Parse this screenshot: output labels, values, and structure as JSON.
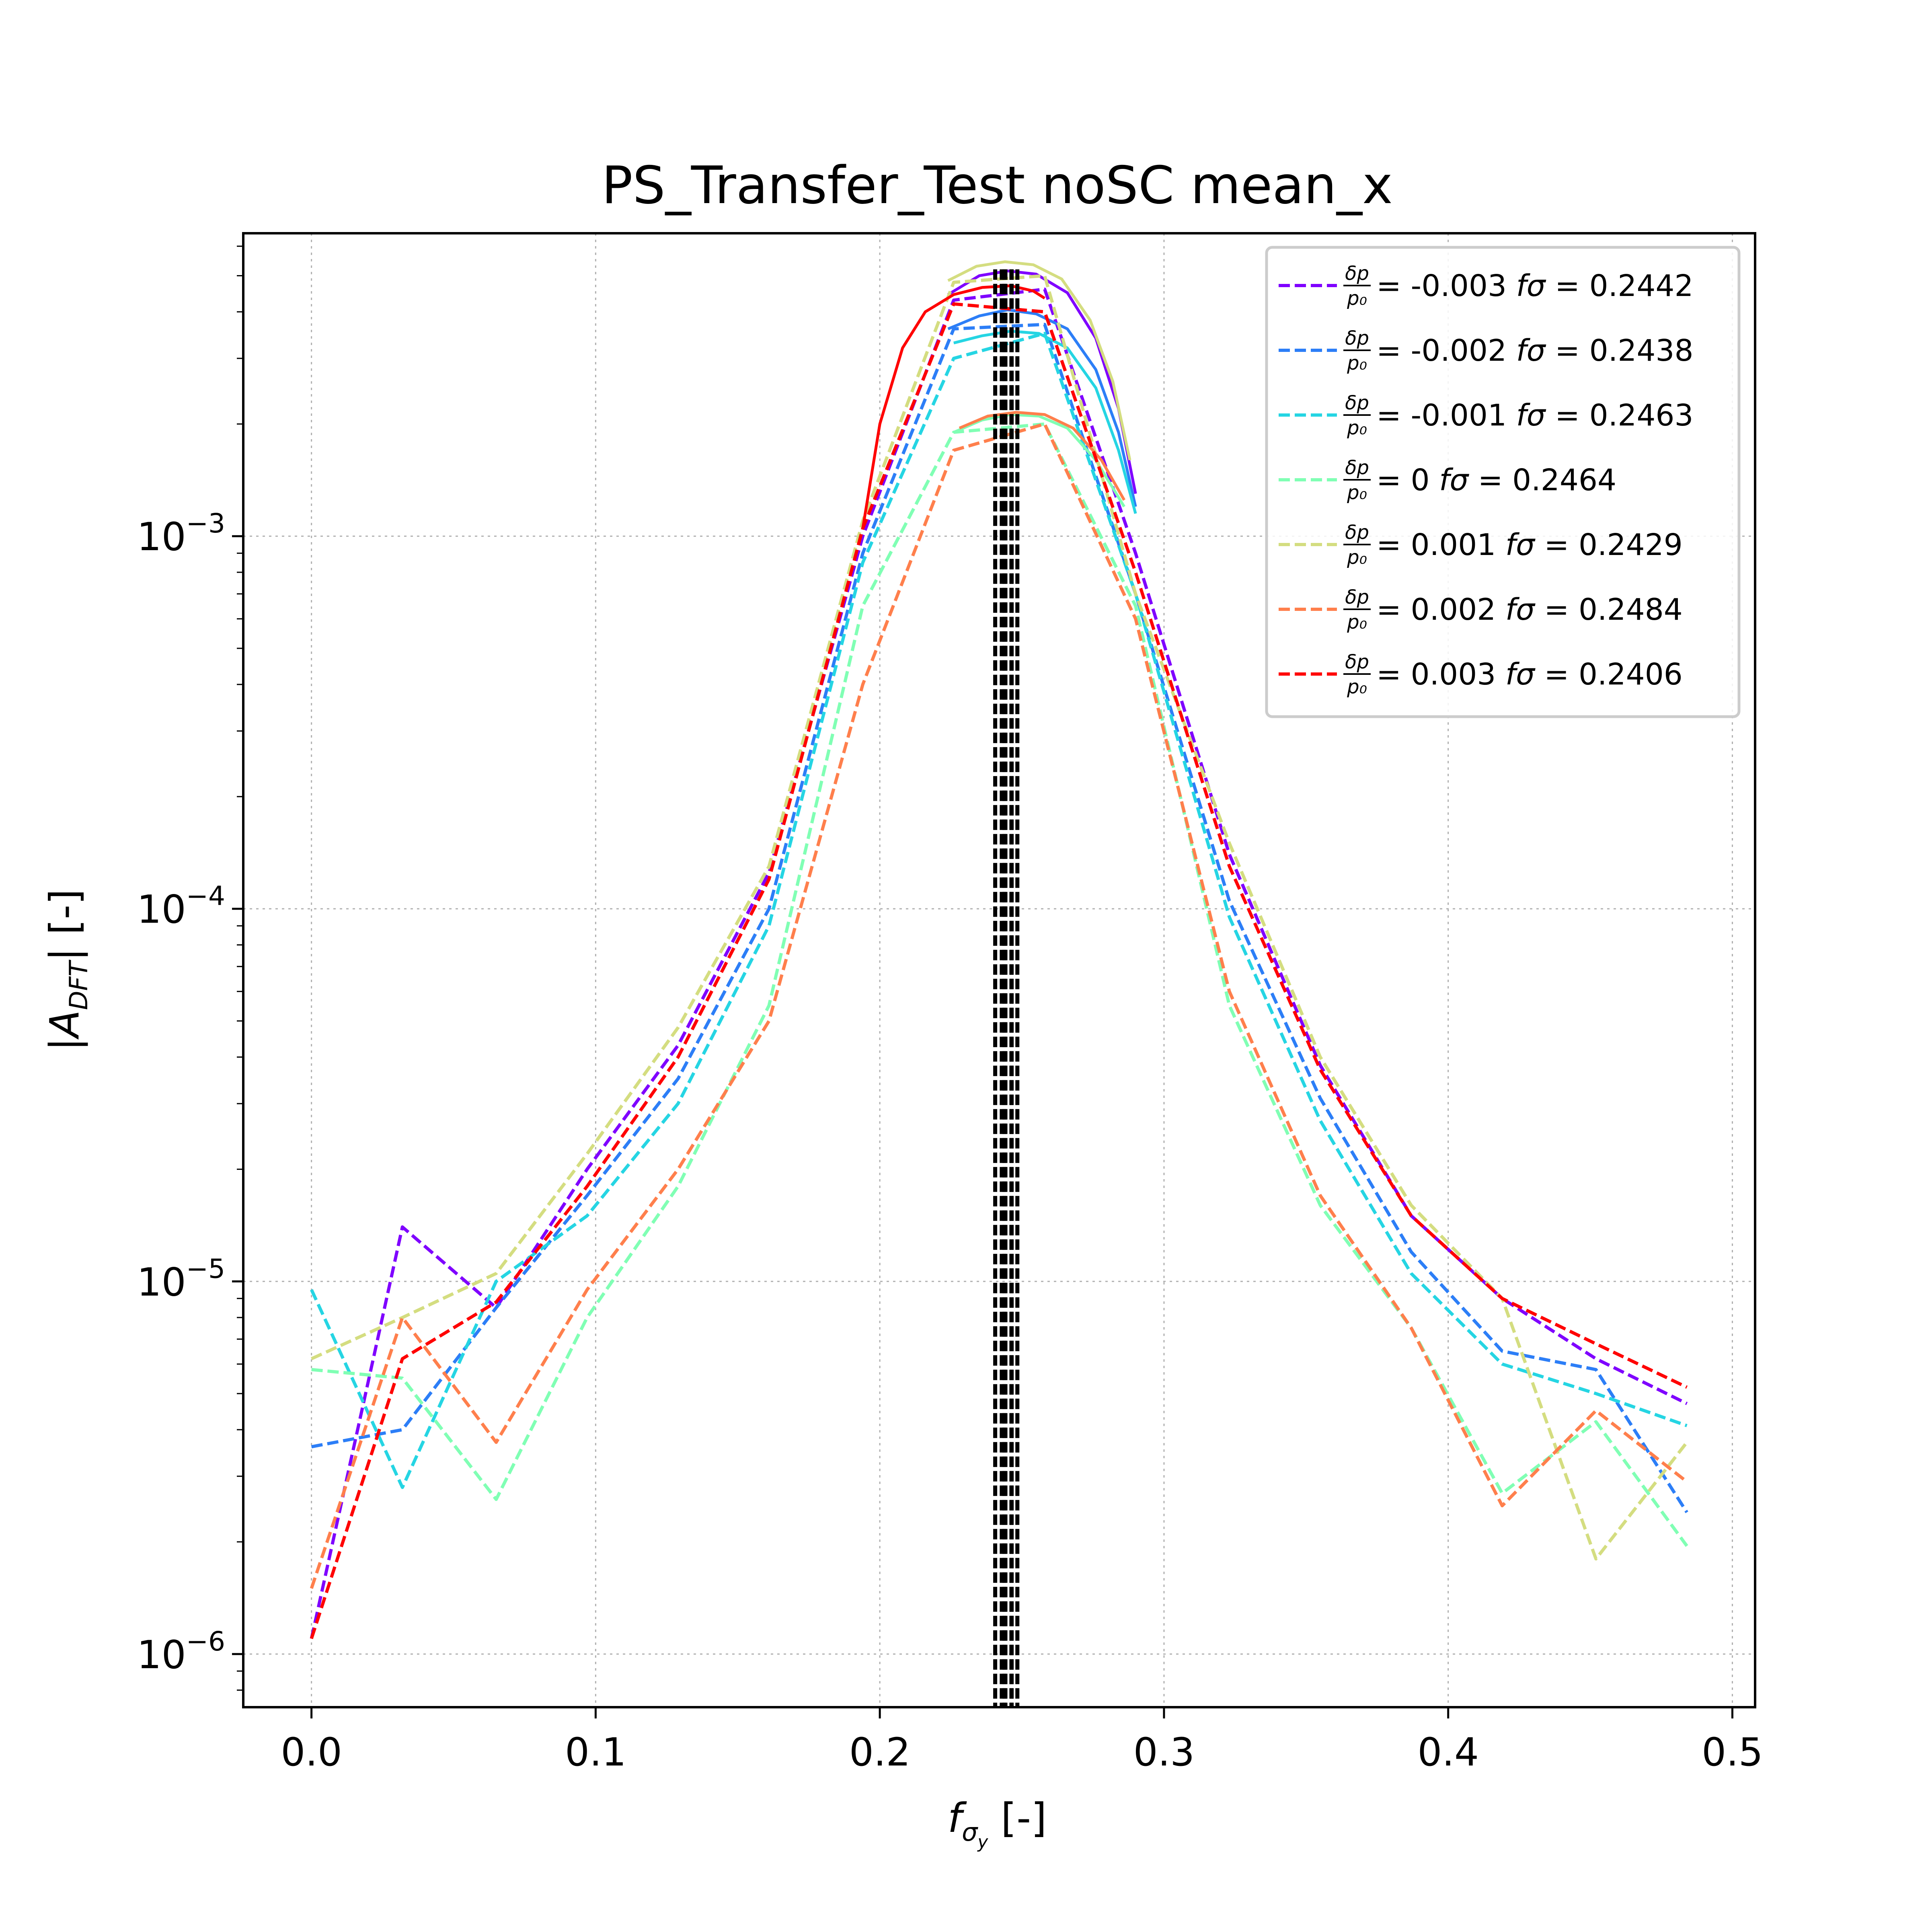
{
  "chart_data": {
    "type": "line",
    "title": "PS_Transfer_Test noSC mean_x",
    "xlabel": "f_σy [-]",
    "ylabel": "|A_DFT| [-]",
    "xlim": [
      -0.024,
      0.508
    ],
    "ylim": [
      7.2e-07,
      0.0065
    ],
    "yscale": "log",
    "grid": true,
    "legend_position": "upper-right",
    "x_ticks": [
      {
        "value": 0.0,
        "label": "0.0"
      },
      {
        "value": 0.1,
        "label": "0.1"
      },
      {
        "value": 0.2,
        "label": "0.2"
      },
      {
        "value": 0.3,
        "label": "0.3"
      },
      {
        "value": 0.4,
        "label": "0.4"
      },
      {
        "value": 0.5,
        "label": "0.5"
      }
    ],
    "y_ticks": [
      {
        "value": 0.001,
        "label": "10",
        "exp": "−3"
      },
      {
        "value": 0.0001,
        "label": "10",
        "exp": "−4"
      },
      {
        "value": 1e-05,
        "label": "10",
        "exp": "−5"
      },
      {
        "value": 1e-06,
        "label": "10",
        "exp": "−6"
      }
    ],
    "x": [
      0.0,
      0.032,
      0.065,
      0.097,
      0.129,
      0.161,
      0.194,
      0.226,
      0.258,
      0.29,
      0.323,
      0.355,
      0.387,
      0.419,
      0.452,
      0.484
    ],
    "series": [
      {
        "name": "δp/p0 = -0.003 fσ = 0.2442",
        "dp": "-0.003",
        "fsigma": "0.2442",
        "color": "#7f00ff",
        "values": [
          1.1e-06,
          1.4e-05,
          8.5e-06,
          2e-05,
          4.3e-05,
          0.000125,
          0.001,
          0.0043,
          0.0046,
          0.0009,
          0.00014,
          3.8e-05,
          1.5e-05,
          9e-06,
          6.2e-06,
          4.7e-06
        ],
        "peak_curve": [
          [
            0.224,
            0.00445
          ],
          [
            0.235,
            0.005
          ],
          [
            0.245,
            0.00515
          ],
          [
            0.255,
            0.00505
          ],
          [
            0.266,
            0.0045
          ],
          [
            0.276,
            0.0034
          ],
          [
            0.284,
            0.0022
          ],
          [
            0.29,
            0.0013
          ]
        ],
        "fsigma_value": 0.2442
      },
      {
        "name": "δp/p0 = -0.002 fσ = 0.2438",
        "dp": "-0.002",
        "fsigma": "0.2438",
        "color": "#2c7ef7",
        "values": [
          3.6e-06,
          4e-06,
          8.5e-06,
          1.7e-05,
          3.5e-05,
          0.0001,
          0.0009,
          0.0036,
          0.0037,
          0.0007,
          0.000105,
          3.1e-05,
          1.2e-05,
          6.5e-06,
          5.8e-06,
          2.4e-06
        ],
        "peak_curve": [
          [
            0.224,
            0.0036
          ],
          [
            0.235,
            0.0039
          ],
          [
            0.245,
            0.00405
          ],
          [
            0.255,
            0.00395
          ],
          [
            0.266,
            0.0036
          ],
          [
            0.276,
            0.0028
          ],
          [
            0.284,
            0.0019
          ],
          [
            0.29,
            0.0012
          ]
        ],
        "fsigma_value": 0.2438
      },
      {
        "name": "δp/p0 = -0.001 fσ = 0.2463",
        "dp": "-0.001",
        "fsigma": "0.2463",
        "color": "#25d5e3",
        "values": [
          9.5e-06,
          2.8e-06,
          1e-05,
          1.5e-05,
          3e-05,
          9e-05,
          0.00085,
          0.003,
          0.0035,
          0.0007,
          9.5e-05,
          2.7e-05,
          1.05e-05,
          6e-06,
          5e-06,
          4.1e-06
        ],
        "peak_curve": [
          [
            0.226,
            0.0033
          ],
          [
            0.236,
            0.00345
          ],
          [
            0.246,
            0.00355
          ],
          [
            0.256,
            0.0035
          ],
          [
            0.266,
            0.0032
          ],
          [
            0.276,
            0.0025
          ],
          [
            0.284,
            0.0017
          ],
          [
            0.29,
            0.00115
          ]
        ],
        "fsigma_value": 0.2463
      },
      {
        "name": "δp/p0 = 0 fσ = 0.2464",
        "dp": "0",
        "fsigma": "0.2464",
        "color": "#80ffb4",
        "values": [
          5.8e-06,
          5.5e-06,
          2.6e-06,
          8e-06,
          1.8e-05,
          5.5e-05,
          0.00065,
          0.0019,
          0.002,
          0.00065,
          5.5e-05,
          1.6e-05,
          7.5e-06,
          2.7e-06,
          4.2e-06,
          1.95e-06
        ],
        "peak_curve": [
          [
            0.226,
            0.0019
          ],
          [
            0.236,
            0.00205
          ],
          [
            0.246,
            0.00212
          ],
          [
            0.256,
            0.0021
          ],
          [
            0.266,
            0.00195
          ],
          [
            0.276,
            0.0016
          ],
          [
            0.286,
            0.0012
          ]
        ],
        "fsigma_value": 0.2464
      },
      {
        "name": "δp/p0 = 0.001 fσ = 0.2429",
        "dp": "0.001",
        "fsigma": "0.2429",
        "color": "#d4dd80",
        "values": [
          6.2e-06,
          8e-06,
          1.05e-05,
          2.2e-05,
          4.8e-05,
          0.00013,
          0.0011,
          0.0048,
          0.005,
          0.0007,
          0.00015,
          4e-05,
          1.6e-05,
          9e-06,
          1.8e-06,
          3.7e-06
        ],
        "peak_curve": [
          [
            0.224,
            0.00485
          ],
          [
            0.234,
            0.0053
          ],
          [
            0.244,
            0.00545
          ],
          [
            0.254,
            0.00535
          ],
          [
            0.264,
            0.0049
          ],
          [
            0.274,
            0.0038
          ],
          [
            0.282,
            0.0026
          ],
          [
            0.288,
            0.0016
          ]
        ],
        "fsigma_value": 0.2429
      },
      {
        "name": "δp/p0 = 0.002 fσ = 0.2484",
        "dp": "0.002",
        "fsigma": "0.2484",
        "color": "#ff7f4c",
        "values": [
          1.5e-06,
          8e-06,
          3.7e-06,
          9.5e-06,
          2e-05,
          5e-05,
          0.0004,
          0.0017,
          0.002,
          0.0006,
          6e-05,
          1.7e-05,
          7.5e-06,
          2.5e-06,
          4.5e-06,
          2.9e-06
        ],
        "peak_curve": [
          [
            0.228,
            0.00195
          ],
          [
            0.238,
            0.0021
          ],
          [
            0.248,
            0.00215
          ],
          [
            0.258,
            0.00212
          ],
          [
            0.268,
            0.00195
          ],
          [
            0.278,
            0.0016
          ],
          [
            0.286,
            0.00125
          ]
        ],
        "fsigma_value": 0.2484
      },
      {
        "name": "δp/p0 = 0.003 fσ = 0.2406",
        "dp": "0.003",
        "fsigma": "0.2406",
        "color": "#ff0000",
        "values": [
          1.1e-06,
          6.2e-06,
          8.8e-06,
          1.8e-05,
          4e-05,
          0.00012,
          0.00105,
          0.0042,
          0.004,
          0.0008,
          0.00013,
          3.7e-05,
          1.5e-05,
          9e-06,
          6.8e-06,
          5.2e-06
        ],
        "peak_curve": [
          [
            0.194,
            0.00105
          ],
          [
            0.2,
            0.002
          ],
          [
            0.208,
            0.0032
          ],
          [
            0.216,
            0.004
          ],
          [
            0.226,
            0.00445
          ],
          [
            0.236,
            0.00465
          ],
          [
            0.246,
            0.0047
          ],
          [
            0.254,
            0.00455
          ],
          [
            0.258,
            0.00435
          ]
        ],
        "fsigma_value": 0.2406
      }
    ],
    "vline_top": 0.0052
  }
}
